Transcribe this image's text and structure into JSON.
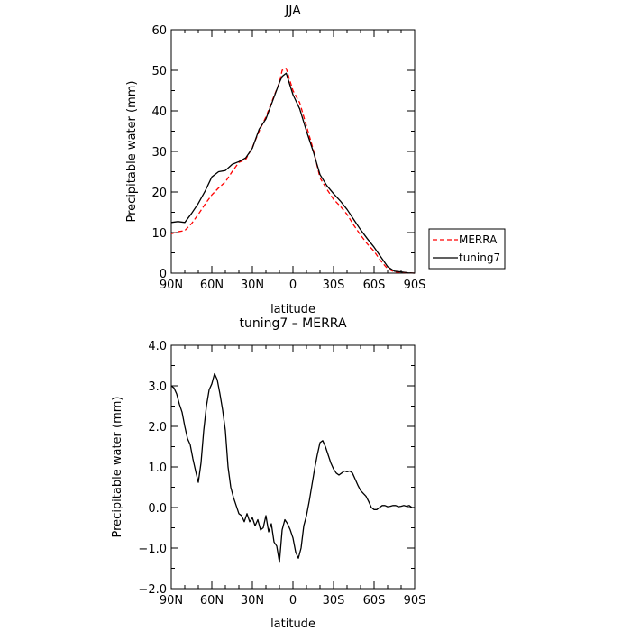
{
  "chart_data": [
    {
      "type": "line",
      "title": "JJA",
      "xlabel": "latitude",
      "ylabel": "Precipitable water (mm)",
      "xlim": [
        90,
        -90
      ],
      "ylim": [
        0,
        60
      ],
      "x_tick_values": [
        90,
        60,
        30,
        0,
        -30,
        -60,
        -90
      ],
      "x_tick_labels": [
        "90N",
        "60N",
        "30N",
        "0",
        "30S",
        "60S",
        "90S"
      ],
      "y_tick_values": [
        0,
        10,
        20,
        30,
        40,
        50,
        60
      ],
      "y_tick_labels": [
        "0",
        "10",
        "20",
        "30",
        "40",
        "50",
        "60"
      ],
      "legend_position": "right",
      "series": [
        {
          "name": "MERRA",
          "color": "#ff0000",
          "dash": "dashed",
          "x": [
            90,
            85,
            80,
            75,
            70,
            65,
            60,
            55,
            50,
            45,
            40,
            35,
            30,
            25,
            20,
            15,
            10,
            8,
            5,
            0,
            -5,
            -10,
            -15,
            -20,
            -25,
            -30,
            -35,
            -40,
            -45,
            -50,
            -55,
            -60,
            -65,
            -70,
            -75,
            -80,
            -85,
            -90
          ],
          "y": [
            9.7,
            10.2,
            10.5,
            12.2,
            14.5,
            17,
            19.3,
            21,
            22.5,
            25,
            27.3,
            28,
            31,
            35,
            38.5,
            42.8,
            47,
            50,
            50.5,
            45,
            42,
            36.3,
            30.5,
            23.5,
            20.7,
            18.2,
            16.5,
            14.5,
            11.8,
            9.4,
            7.2,
            5.4,
            3,
            1.1,
            0.3,
            0.2,
            0.1,
            0
          ]
        },
        {
          "name": "tuning7",
          "color": "#000000",
          "dash": "solid",
          "x": [
            90,
            85,
            80,
            75,
            70,
            65,
            60,
            55,
            50,
            45,
            40,
            35,
            30,
            25,
            20,
            15,
            10,
            8,
            5,
            0,
            -5,
            -10,
            -15,
            -20,
            -25,
            -30,
            -35,
            -40,
            -45,
            -50,
            -55,
            -60,
            -65,
            -70,
            -75,
            -80,
            -85,
            -90
          ],
          "y": [
            12.5,
            12.7,
            12.5,
            14.7,
            17.2,
            20.2,
            23.7,
            25,
            25.3,
            26.8,
            27.5,
            28.4,
            30.8,
            35.5,
            38,
            42.5,
            47,
            48.5,
            49.3,
            44,
            40.5,
            35,
            30,
            24.3,
            21.6,
            19.6,
            17.8,
            15.7,
            13.2,
            10.7,
            8.5,
            6.4,
            4,
            1.6,
            0.5,
            0.3,
            0.1,
            0
          ]
        }
      ]
    },
    {
      "type": "line",
      "title": "tuning7 – MERRA",
      "xlabel": "latitude",
      "ylabel": "Precipitable water (mm)",
      "xlim": [
        90,
        -90
      ],
      "ylim": [
        -2,
        4
      ],
      "x_tick_values": [
        90,
        60,
        30,
        0,
        -30,
        -60,
        -90
      ],
      "x_tick_labels": [
        "90N",
        "60N",
        "30N",
        "0",
        "30S",
        "60S",
        "90S"
      ],
      "y_tick_values": [
        -2,
        -1,
        0,
        1,
        2,
        3,
        4
      ],
      "y_tick_labels": [
        "−2.0",
        "−1.0",
        "0.0",
        "1.0",
        "2.0",
        "3.0",
        "4.0"
      ],
      "series": [
        {
          "color": "#000000",
          "dash": "solid",
          "x": [
            90,
            88,
            86,
            84,
            82,
            80,
            78,
            76,
            74,
            72,
            70,
            68,
            66,
            64,
            62,
            60,
            58,
            56,
            54,
            52,
            50,
            48,
            46,
            44,
            42,
            40,
            38,
            36,
            34,
            32,
            30,
            28,
            26,
            24,
            22,
            20,
            18,
            16,
            14,
            12,
            10,
            8,
            6,
            4,
            2,
            0,
            -2,
            -4,
            -6,
            -8,
            -10,
            -12,
            -14,
            -16,
            -18,
            -20,
            -22,
            -24,
            -26,
            -28,
            -30,
            -32,
            -34,
            -36,
            -38,
            -40,
            -42,
            -44,
            -46,
            -48,
            -50,
            -52,
            -54,
            -56,
            -58,
            -60,
            -62,
            -64,
            -66,
            -68,
            -70,
            -72,
            -74,
            -76,
            -78,
            -80,
            -82,
            -84,
            -86,
            -88,
            -90
          ],
          "y": [
            3.0,
            2.95,
            2.8,
            2.55,
            2.35,
            2.0,
            1.7,
            1.55,
            1.2,
            0.9,
            0.62,
            1.1,
            1.9,
            2.5,
            2.9,
            3.05,
            3.3,
            3.15,
            2.8,
            2.4,
            1.9,
            1.0,
            0.5,
            0.25,
            0.05,
            -0.15,
            -0.2,
            -0.35,
            -0.15,
            -0.35,
            -0.25,
            -0.45,
            -0.3,
            -0.55,
            -0.5,
            -0.2,
            -0.6,
            -0.4,
            -0.85,
            -0.95,
            -1.35,
            -0.55,
            -0.3,
            -0.4,
            -0.55,
            -0.75,
            -1.1,
            -1.25,
            -1.0,
            -0.45,
            -0.2,
            0.15,
            0.55,
            0.95,
            1.3,
            1.6,
            1.65,
            1.5,
            1.3,
            1.1,
            0.95,
            0.85,
            0.8,
            0.85,
            0.9,
            0.88,
            0.9,
            0.85,
            0.7,
            0.55,
            0.42,
            0.35,
            0.28,
            0.15,
            0.0,
            -0.05,
            -0.05,
            0.0,
            0.05,
            0.05,
            0.02,
            0.03,
            0.05,
            0.05,
            0.02,
            0.03,
            0.05,
            0.03,
            0.05,
            0.0,
            0.0
          ]
        }
      ]
    }
  ]
}
